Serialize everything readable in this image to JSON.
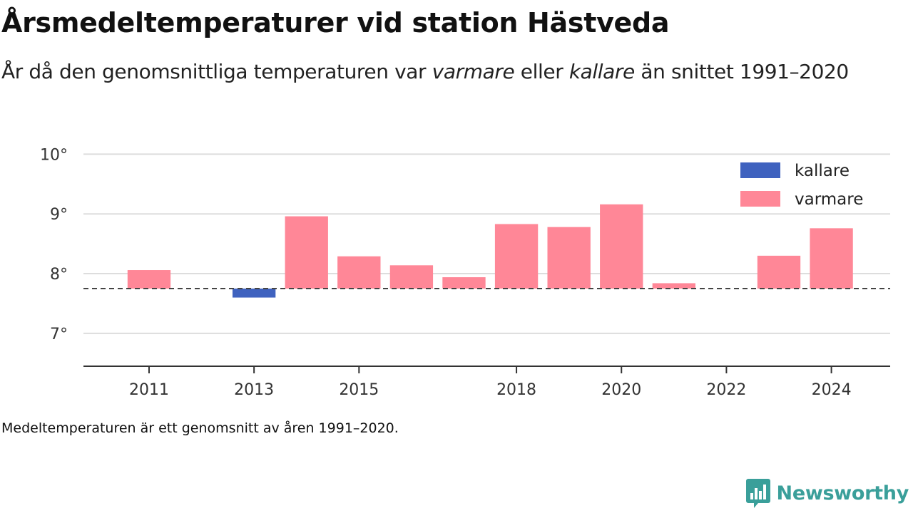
{
  "title": "Årsmedeltemperaturer vid station Hästveda",
  "subtitle": {
    "part1": "År då den genomsnittliga temperaturen var ",
    "warmer": "varmare",
    "part2": " eller ",
    "colder": "kallare",
    "part3": " än snittet 1991–2020"
  },
  "footnote": "Medeltemperaturen är ett genomsnitt av åren 1991–2020.",
  "brand": "Newsworthy",
  "colors": {
    "colder": "#3f62bf",
    "warmer": "#ff8797",
    "brand": "#3a9f9a",
    "grid": "#dddddd"
  },
  "chart_data": {
    "type": "bar",
    "baseline": 7.75,
    "ylim": [
      6.45,
      10.1
    ],
    "yticks": [
      7,
      8,
      9,
      10
    ],
    "ytick_labels": [
      "7°",
      "8°",
      "9°",
      "10°"
    ],
    "xlim": [
      2009.75,
      2025.12
    ],
    "xticks": [
      2011,
      2013,
      2015,
      2018,
      2020,
      2022,
      2024
    ],
    "xtick_labels": [
      "2011",
      "2013",
      "2015",
      "2018",
      "2020",
      "2022",
      "2024"
    ],
    "legend": {
      "position": "top-right",
      "entries": [
        {
          "key": "colder",
          "label": "kallare"
        },
        {
          "key": "warmer",
          "label": "varmare"
        }
      ]
    },
    "grid": true,
    "data": [
      {
        "year": 2011,
        "value": 8.06,
        "category": "warmer"
      },
      {
        "year": 2013,
        "value": 7.6,
        "category": "colder"
      },
      {
        "year": 2014,
        "value": 8.96,
        "category": "warmer"
      },
      {
        "year": 2015,
        "value": 8.29,
        "category": "warmer"
      },
      {
        "year": 2016,
        "value": 8.14,
        "category": "warmer"
      },
      {
        "year": 2017,
        "value": 7.94,
        "category": "warmer"
      },
      {
        "year": 2018,
        "value": 8.83,
        "category": "warmer"
      },
      {
        "year": 2019,
        "value": 8.78,
        "category": "warmer"
      },
      {
        "year": 2020,
        "value": 9.16,
        "category": "warmer"
      },
      {
        "year": 2021,
        "value": 7.84,
        "category": "warmer"
      },
      {
        "year": 2023,
        "value": 8.3,
        "category": "warmer"
      },
      {
        "year": 2024,
        "value": 8.76,
        "category": "warmer"
      }
    ]
  }
}
